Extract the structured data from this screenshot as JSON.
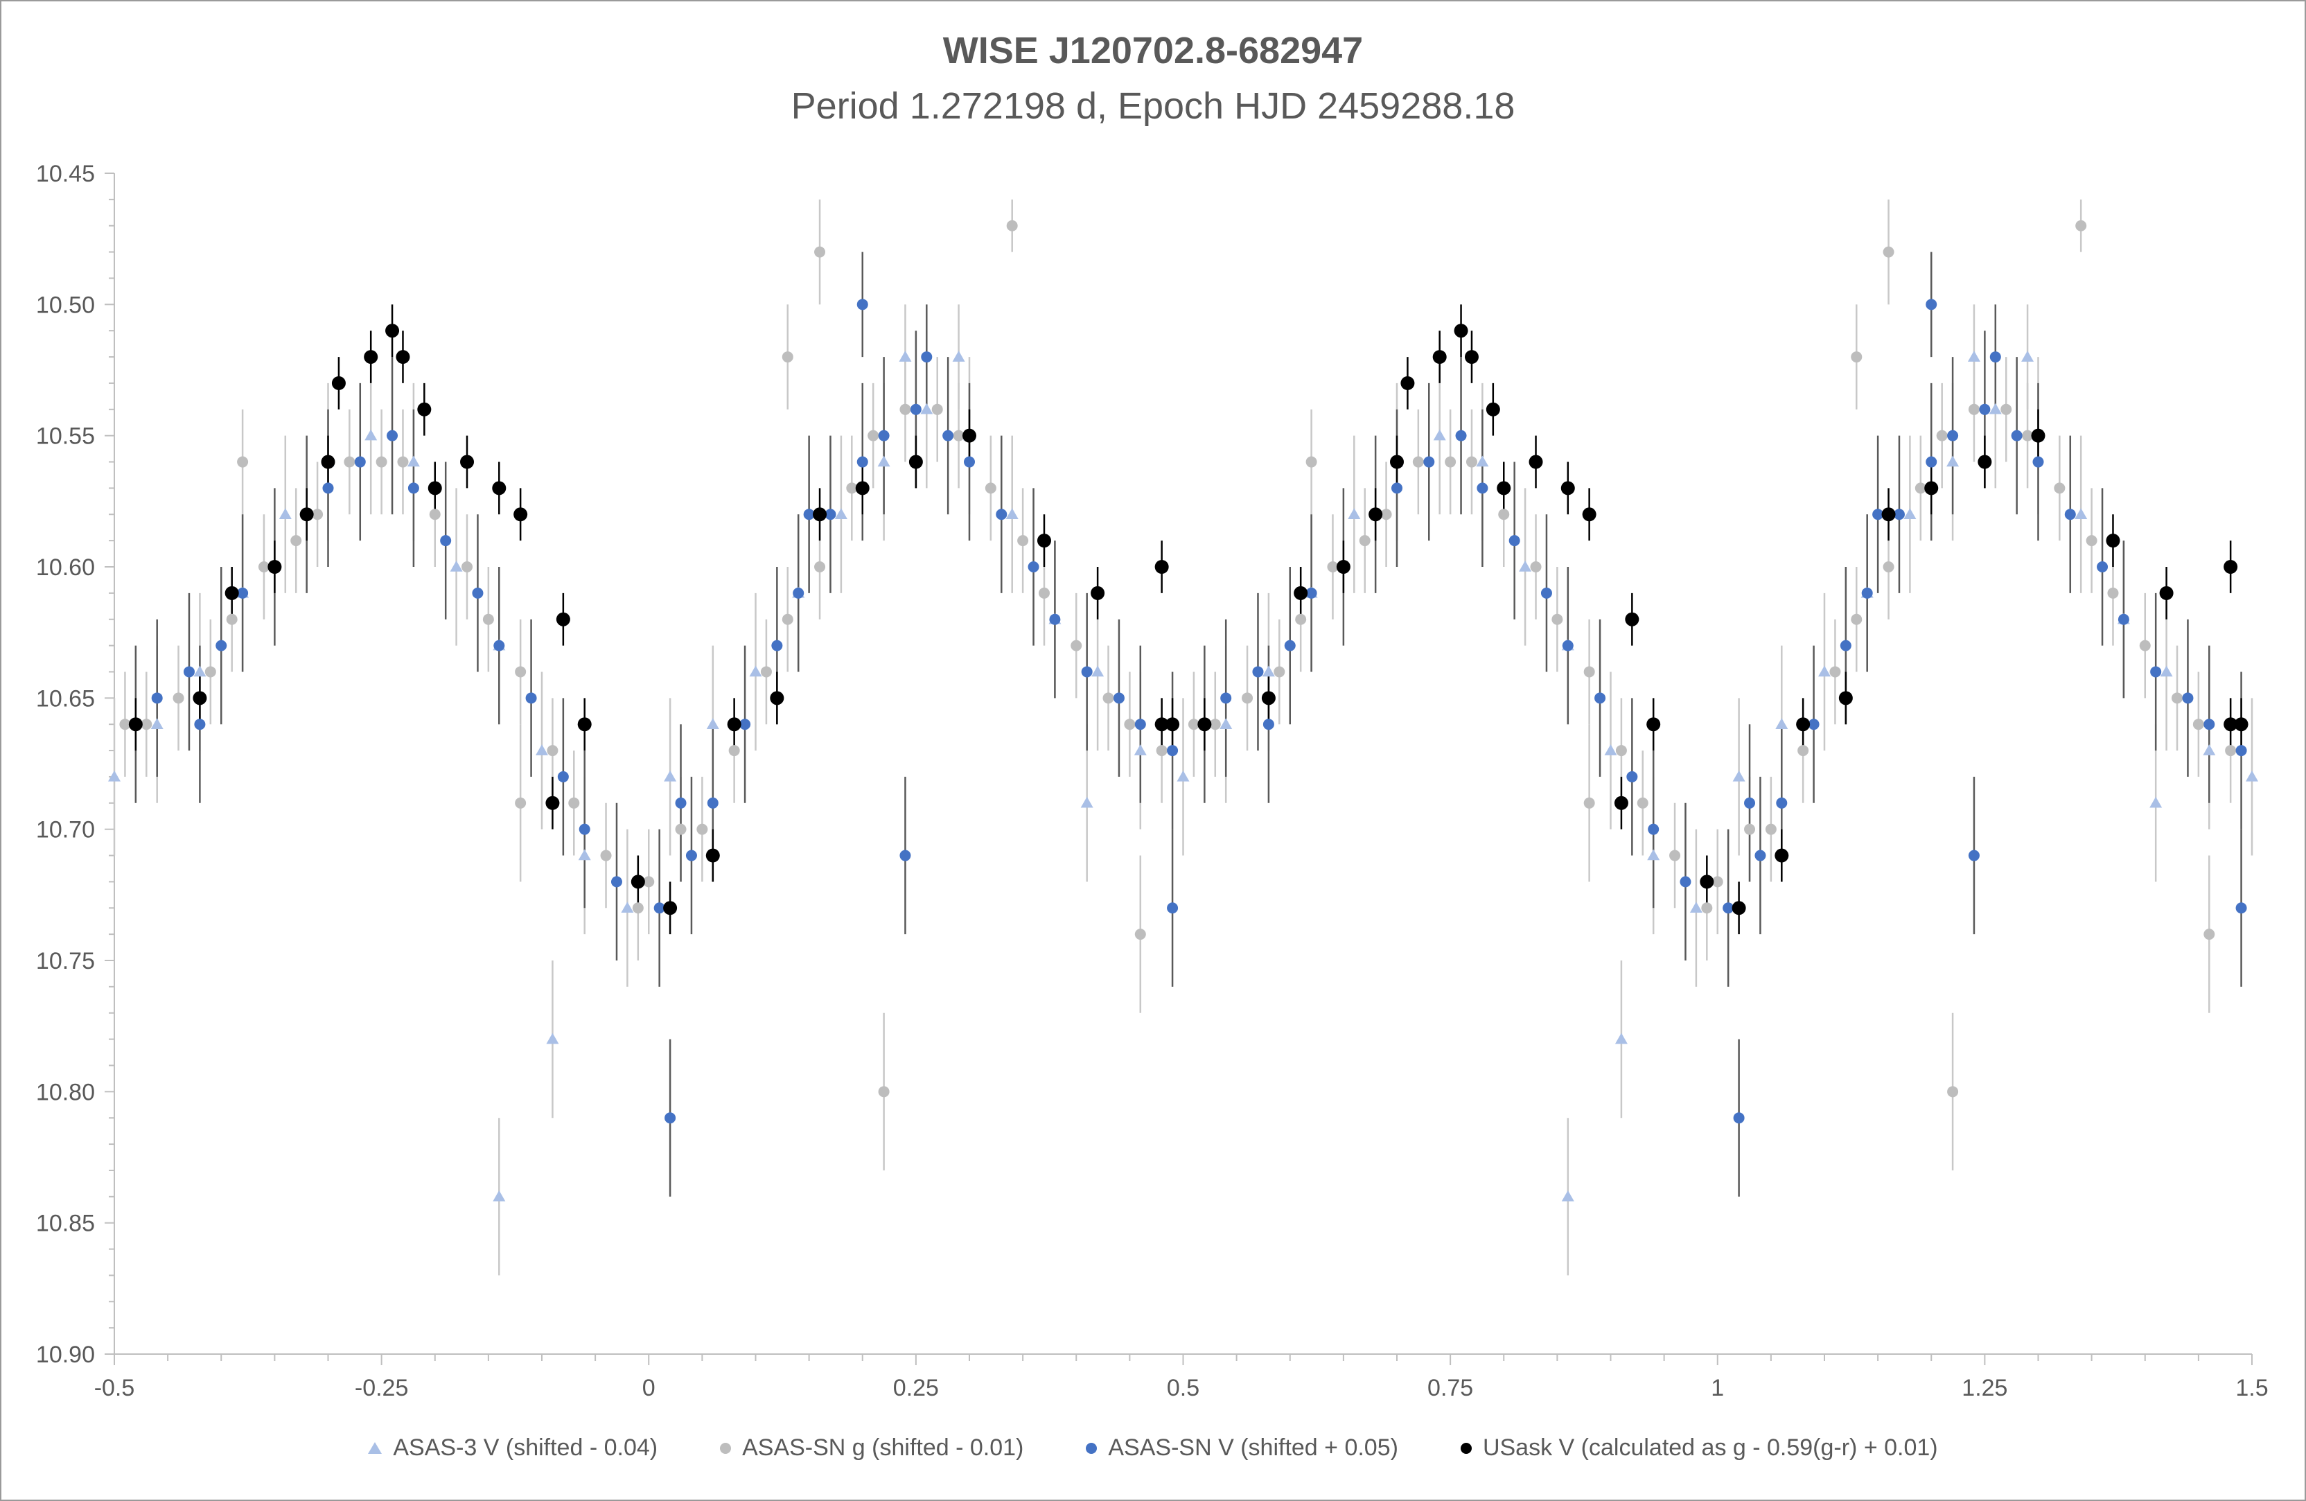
{
  "chart_data": {
    "type": "scatter",
    "title": "WISE J120702.8-682947",
    "subtitle": "Period 1.272198 d, Epoch HJD 2459288.18",
    "xlabel": "",
    "ylabel": "",
    "xlim": [
      -0.5,
      1.5
    ],
    "ylim": [
      10.9,
      10.45
    ],
    "y_inverted": true,
    "x_ticks": [
      "-0.5",
      "-0.25",
      "0",
      "0.25",
      "0.5",
      "0.75",
      "1",
      "1.25",
      "1.5"
    ],
    "y_ticks": [
      "10.45",
      "10.50",
      "10.55",
      "10.60",
      "10.65",
      "10.70",
      "10.75",
      "10.80",
      "10.85",
      "10.90"
    ],
    "grid": false,
    "legend_position": "bottom",
    "phase_repeats_every": 1.0,
    "series": [
      {
        "name": "ASAS-3 V (shifted - 0.04)",
        "marker": "triangle",
        "color": "#a9bfe6",
        "error_color": "#c8c8c8",
        "points": [
          [
            0.02,
            10.68,
            0.03
          ],
          [
            0.06,
            10.66,
            0.03
          ],
          [
            0.1,
            10.64,
            0.03
          ],
          [
            0.14,
            10.61,
            0.03
          ],
          [
            0.18,
            10.58,
            0.03
          ],
          [
            0.22,
            10.56,
            0.03
          ],
          [
            0.26,
            10.54,
            0.03
          ],
          [
            0.3,
            10.55,
            0.03
          ],
          [
            0.34,
            10.58,
            0.03
          ],
          [
            0.38,
            10.62,
            0.03
          ],
          [
            0.42,
            10.64,
            0.03
          ],
          [
            0.46,
            10.67,
            0.03
          ],
          [
            0.5,
            10.68,
            0.03
          ],
          [
            0.54,
            10.66,
            0.03
          ],
          [
            0.58,
            10.64,
            0.03
          ],
          [
            0.62,
            10.61,
            0.03
          ],
          [
            0.66,
            10.58,
            0.03
          ],
          [
            0.7,
            10.56,
            0.03
          ],
          [
            0.74,
            10.55,
            0.03
          ],
          [
            0.78,
            10.56,
            0.03
          ],
          [
            0.82,
            10.6,
            0.03
          ],
          [
            0.86,
            10.63,
            0.03
          ],
          [
            0.9,
            10.67,
            0.03
          ],
          [
            0.94,
            10.71,
            0.03
          ],
          [
            0.98,
            10.73,
            0.03
          ],
          [
            0.86,
            10.84,
            0.03
          ],
          [
            0.91,
            10.78,
            0.03
          ],
          [
            0.24,
            10.52,
            0.02
          ],
          [
            0.29,
            10.52,
            0.02
          ],
          [
            0.41,
            10.69,
            0.03
          ]
        ]
      },
      {
        "name": "ASAS-SN g (shifted - 0.01)",
        "marker": "circle",
        "color": "#bdbdbd",
        "error_color": "#c8c8c8",
        "points": [
          [
            0.0,
            10.72,
            0.02
          ],
          [
            0.03,
            10.7,
            0.02
          ],
          [
            0.05,
            10.7,
            0.02
          ],
          [
            0.08,
            10.67,
            0.02
          ],
          [
            0.11,
            10.64,
            0.02
          ],
          [
            0.13,
            10.62,
            0.02
          ],
          [
            0.16,
            10.6,
            0.02
          ],
          [
            0.19,
            10.57,
            0.02
          ],
          [
            0.21,
            10.55,
            0.02
          ],
          [
            0.24,
            10.54,
            0.02
          ],
          [
            0.27,
            10.54,
            0.02
          ],
          [
            0.29,
            10.55,
            0.02
          ],
          [
            0.32,
            10.57,
            0.02
          ],
          [
            0.35,
            10.59,
            0.02
          ],
          [
            0.37,
            10.61,
            0.02
          ],
          [
            0.4,
            10.63,
            0.02
          ],
          [
            0.43,
            10.65,
            0.02
          ],
          [
            0.45,
            10.66,
            0.02
          ],
          [
            0.48,
            10.67,
            0.02
          ],
          [
            0.51,
            10.66,
            0.02
          ],
          [
            0.53,
            10.66,
            0.02
          ],
          [
            0.56,
            10.65,
            0.02
          ],
          [
            0.59,
            10.64,
            0.02
          ],
          [
            0.61,
            10.62,
            0.02
          ],
          [
            0.64,
            10.6,
            0.02
          ],
          [
            0.67,
            10.59,
            0.02
          ],
          [
            0.69,
            10.58,
            0.02
          ],
          [
            0.72,
            10.56,
            0.02
          ],
          [
            0.75,
            10.56,
            0.02
          ],
          [
            0.77,
            10.56,
            0.02
          ],
          [
            0.8,
            10.58,
            0.02
          ],
          [
            0.83,
            10.6,
            0.02
          ],
          [
            0.85,
            10.62,
            0.02
          ],
          [
            0.88,
            10.64,
            0.02
          ],
          [
            0.91,
            10.67,
            0.02
          ],
          [
            0.93,
            10.69,
            0.02
          ],
          [
            0.96,
            10.71,
            0.02
          ],
          [
            0.99,
            10.73,
            0.02
          ],
          [
            0.16,
            10.48,
            0.02
          ],
          [
            0.34,
            10.47,
            0.01
          ],
          [
            0.22,
            10.8,
            0.03
          ],
          [
            0.46,
            10.74,
            0.03
          ],
          [
            0.88,
            10.69,
            0.03
          ],
          [
            0.13,
            10.52,
            0.02
          ],
          [
            0.62,
            10.56,
            0.02
          ]
        ]
      },
      {
        "name": "ASAS-SN V (shifted + 0.05)",
        "marker": "circle",
        "color": "#4472c4",
        "error_color": "#595959",
        "points": [
          [
            0.01,
            10.73,
            0.03
          ],
          [
            0.04,
            10.71,
            0.03
          ],
          [
            0.06,
            10.69,
            0.03
          ],
          [
            0.09,
            10.66,
            0.03
          ],
          [
            0.12,
            10.63,
            0.03
          ],
          [
            0.14,
            10.61,
            0.03
          ],
          [
            0.17,
            10.58,
            0.03
          ],
          [
            0.2,
            10.56,
            0.03
          ],
          [
            0.22,
            10.55,
            0.03
          ],
          [
            0.25,
            10.54,
            0.03
          ],
          [
            0.28,
            10.55,
            0.03
          ],
          [
            0.3,
            10.56,
            0.03
          ],
          [
            0.33,
            10.58,
            0.03
          ],
          [
            0.36,
            10.6,
            0.03
          ],
          [
            0.38,
            10.62,
            0.03
          ],
          [
            0.41,
            10.64,
            0.03
          ],
          [
            0.44,
            10.65,
            0.03
          ],
          [
            0.46,
            10.66,
            0.03
          ],
          [
            0.49,
            10.67,
            0.03
          ],
          [
            0.52,
            10.66,
            0.03
          ],
          [
            0.54,
            10.65,
            0.03
          ],
          [
            0.57,
            10.64,
            0.03
          ],
          [
            0.6,
            10.63,
            0.03
          ],
          [
            0.62,
            10.61,
            0.03
          ],
          [
            0.65,
            10.6,
            0.03
          ],
          [
            0.68,
            10.58,
            0.03
          ],
          [
            0.7,
            10.57,
            0.03
          ],
          [
            0.73,
            10.56,
            0.03
          ],
          [
            0.76,
            10.55,
            0.03
          ],
          [
            0.78,
            10.57,
            0.03
          ],
          [
            0.81,
            10.59,
            0.03
          ],
          [
            0.84,
            10.61,
            0.03
          ],
          [
            0.86,
            10.63,
            0.03
          ],
          [
            0.89,
            10.65,
            0.03
          ],
          [
            0.92,
            10.68,
            0.03
          ],
          [
            0.94,
            10.7,
            0.03
          ],
          [
            0.97,
            10.72,
            0.03
          ],
          [
            0.02,
            10.81,
            0.03
          ],
          [
            0.2,
            10.5,
            0.02
          ],
          [
            0.24,
            10.71,
            0.03
          ],
          [
            0.49,
            10.73,
            0.03
          ],
          [
            0.26,
            10.52,
            0.02
          ],
          [
            0.03,
            10.69,
            0.03
          ],
          [
            0.15,
            10.58,
            0.03
          ],
          [
            0.58,
            10.66,
            0.03
          ]
        ]
      },
      {
        "name": "USask V (calculated as g - 0.59(g-r) + 0.01)",
        "marker": "circle",
        "color": "#000000",
        "error_color": "#000000",
        "points": [
          [
            0.71,
            10.53,
            0.01
          ],
          [
            0.74,
            10.52,
            0.01
          ],
          [
            0.76,
            10.51,
            0.01
          ],
          [
            0.77,
            10.52,
            0.01
          ],
          [
            0.79,
            10.54,
            0.01
          ],
          [
            0.8,
            10.57,
            0.01
          ],
          [
            0.83,
            10.56,
            0.01
          ],
          [
            0.86,
            10.57,
            0.01
          ],
          [
            0.88,
            10.58,
            0.01
          ],
          [
            0.92,
            10.62,
            0.01
          ],
          [
            0.94,
            10.66,
            0.01
          ],
          [
            0.99,
            10.72,
            0.01
          ],
          [
            1.02,
            10.73,
            0.01
          ],
          [
            1.06,
            10.71,
            0.01
          ],
          [
            1.08,
            10.66,
            0.01
          ],
          [
            1.12,
            10.65,
            0.01
          ],
          [
            1.16,
            10.58,
            0.01
          ],
          [
            1.2,
            10.57,
            0.01
          ],
          [
            1.25,
            10.56,
            0.01
          ],
          [
            1.3,
            10.55,
            0.01
          ],
          [
            1.37,
            10.59,
            0.01
          ],
          [
            1.42,
            10.61,
            0.01
          ],
          [
            1.48,
            10.6,
            0.01
          ],
          [
            0.7,
            10.56,
            0.01
          ],
          [
            0.65,
            10.6,
            0.01
          ],
          [
            0.61,
            10.61,
            0.01
          ],
          [
            0.52,
            10.66,
            0.01
          ],
          [
            0.48,
            10.66,
            0.01
          ],
          [
            0.58,
            10.65,
            0.01
          ],
          [
            0.68,
            10.58,
            0.01
          ],
          [
            0.91,
            10.69,
            0.01
          ],
          [
            1.49,
            10.66,
            0.01
          ]
        ]
      }
    ]
  }
}
